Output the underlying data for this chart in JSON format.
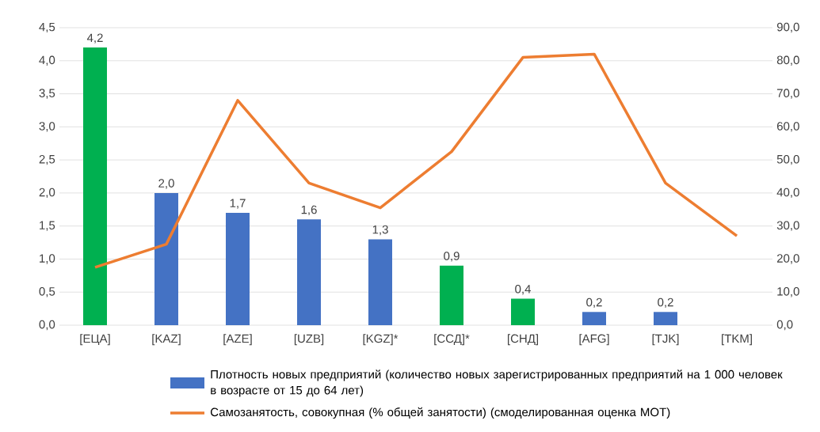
{
  "chart_data": {
    "type": "bar",
    "categories": [
      "[ЕЦА]",
      "[KAZ]",
      "[AZE]",
      "[UZB]",
      "[KGZ]*",
      "[ССД]*",
      "[СНД]",
      "[AFG]",
      "[TJK]",
      "[TKM]"
    ],
    "ylim": [
      0,
      4.5
    ],
    "yticks": [
      {
        "value": 0,
        "label": "0,0"
      },
      {
        "value": 0.5,
        "label": "0,5"
      },
      {
        "value": 1,
        "label": "1,0"
      },
      {
        "value": 1.5,
        "label": "1,5"
      },
      {
        "value": 2,
        "label": "2,0"
      },
      {
        "value": 2.5,
        "label": "2,5"
      },
      {
        "value": 3,
        "label": "3,0"
      },
      {
        "value": 3.5,
        "label": "3,5"
      },
      {
        "value": 4,
        "label": "4,0"
      },
      {
        "value": 4.5,
        "label": "4,5"
      }
    ],
    "y2lim": [
      0,
      90
    ],
    "y2ticks": [
      {
        "value": 0,
        "label": "0,0"
      },
      {
        "value": 10,
        "label": "10,0"
      },
      {
        "value": 20,
        "label": "20,0"
      },
      {
        "value": 30,
        "label": "30,0"
      },
      {
        "value": 40,
        "label": "40,0"
      },
      {
        "value": 50,
        "label": "50,0"
      },
      {
        "value": 60,
        "label": "60,0"
      },
      {
        "value": 70,
        "label": "70,0"
      },
      {
        "value": 80,
        "label": "80,0"
      },
      {
        "value": 90,
        "label": "90,0"
      }
    ],
    "grid": "y",
    "legend": "bottom",
    "series": [
      {
        "name": "Плотность новых предприятий (количество новых зарегистрированных предприятий на 1 000 человек в возрасте от 15 до 64 лет)",
        "colors": [
          "#00b050",
          "#4472c4",
          "#4472c4",
          "#4472c4",
          "#4472c4",
          "#00b050",
          "#00b050",
          "#4472c4",
          "#4472c4",
          "#4472c4"
        ],
        "values": [
          4.2,
          2.0,
          1.7,
          1.6,
          1.3,
          0.9,
          0.4,
          0.2,
          0.2,
          null
        ],
        "value_labels": [
          "4,2",
          "2,0",
          "1,7",
          "1,6",
          "1,3",
          "0,9",
          "0,4",
          "0,2",
          "0,2",
          null
        ]
      },
      {
        "name": "Самозанятость, совокупная (% общей занятости) (смоделированная оценка МОТ)",
        "type": "line",
        "axis": "y2",
        "color": "#ed7d31",
        "values": [
          17.5,
          24.5,
          68,
          43,
          35.5,
          52.5,
          81,
          82,
          43,
          27
        ]
      }
    ]
  }
}
